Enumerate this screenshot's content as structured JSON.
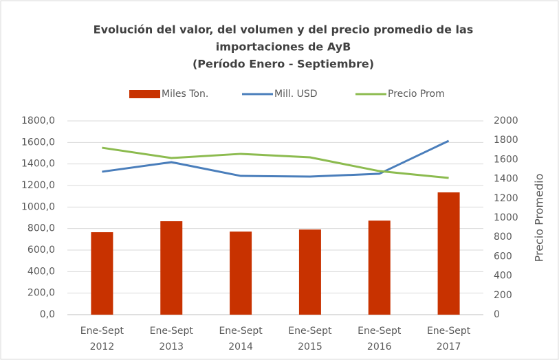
{
  "chart_data": {
    "type": "bar-line",
    "title": [
      "Evolución del valor, del volumen y del precio promedio de las",
      "importaciones de AyB",
      "(Período Enero - Septiembre)"
    ],
    "categories": [
      [
        "Ene-Sept",
        "2012"
      ],
      [
        "Ene-Sept",
        "2013"
      ],
      [
        "Ene-Sept",
        "2014"
      ],
      [
        "Ene-Sept",
        "2015"
      ],
      [
        "Ene-Sept",
        "2016"
      ],
      [
        "Ene-Sept",
        "2017"
      ]
    ],
    "series": [
      {
        "name": "Miles Ton.",
        "color": "#c83200",
        "kind": "bar",
        "values": [
          766,
          868,
          772,
          791,
          874,
          1136
        ]
      },
      {
        "name": "Mill. USD",
        "color": "#4a7ebb",
        "kind": "line",
        "values": [
          1328,
          1417,
          1289,
          1283,
          1309,
          1615
        ]
      },
      {
        "name": "Precio Prom",
        "color": "#8cbb4f",
        "kind": "line",
        "axis": "y2",
        "values": [
          1723,
          1617,
          1660,
          1624,
          1482,
          1411
        ]
      }
    ],
    "ylim": [
      0,
      1800
    ],
    "yticks": [
      {
        "value": 0,
        "label": "0,0"
      },
      {
        "value": 200,
        "label": "200,0"
      },
      {
        "value": 400,
        "label": "400,0"
      },
      {
        "value": 600,
        "label": "600,0"
      },
      {
        "value": 800,
        "label": "800,0"
      },
      {
        "value": 1000,
        "label": "1000,0"
      },
      {
        "value": 1200,
        "label": "1200,0"
      },
      {
        "value": 1400,
        "label": "1400,0"
      },
      {
        "value": 1600,
        "label": "1600,0"
      },
      {
        "value": 1800,
        "label": "1800,0"
      }
    ],
    "y2lim": [
      0,
      2000
    ],
    "y2ticks": [
      0,
      200,
      400,
      600,
      800,
      1000,
      1200,
      1400,
      1600,
      1800,
      2000
    ],
    "y2label": "Precio Promedio",
    "grid": true,
    "legend": "top"
  }
}
